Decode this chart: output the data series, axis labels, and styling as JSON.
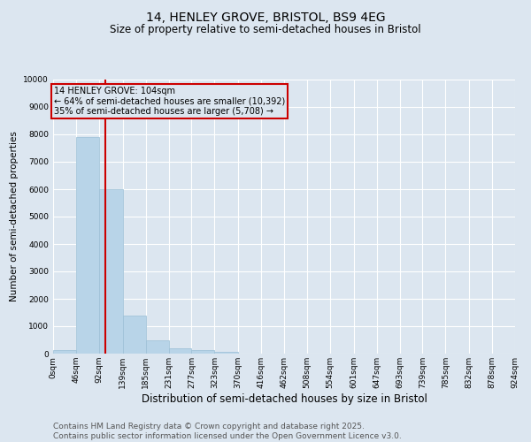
{
  "title": "14, HENLEY GROVE, BRISTOL, BS9 4EG",
  "subtitle": "Size of property relative to semi-detached houses in Bristol",
  "xlabel": "Distribution of semi-detached houses by size in Bristol",
  "ylabel": "Number of semi-detached properties",
  "property_size": 104,
  "property_label": "14 HENLEY GROVE: 104sqm",
  "annotation_line1": "← 64% of semi-detached houses are smaller (10,392)",
  "annotation_line2": "35% of semi-detached houses are larger (5,708) →",
  "bar_color": "#b8d4e8",
  "bar_edge_color": "#9bbfd6",
  "vline_color": "#cc0000",
  "annotation_box_color": "#cc0000",
  "background_color": "#dce6f0",
  "ylim": [
    0,
    10000
  ],
  "yticks": [
    0,
    1000,
    2000,
    3000,
    4000,
    5000,
    6000,
    7000,
    8000,
    9000,
    10000
  ],
  "bin_edges": [
    0,
    46,
    92,
    139,
    185,
    231,
    277,
    323,
    370,
    416,
    462,
    508,
    554,
    601,
    647,
    693,
    739,
    785,
    832,
    878,
    924
  ],
  "bin_labels": [
    "0sqm",
    "46sqm",
    "92sqm",
    "139sqm",
    "185sqm",
    "231sqm",
    "277sqm",
    "323sqm",
    "370sqm",
    "416sqm",
    "462sqm",
    "508sqm",
    "554sqm",
    "601sqm",
    "647sqm",
    "693sqm",
    "739sqm",
    "785sqm",
    "832sqm",
    "878sqm",
    "924sqm"
  ],
  "bar_heights": [
    130,
    7900,
    6000,
    1380,
    490,
    200,
    130,
    60,
    0,
    0,
    0,
    0,
    0,
    0,
    0,
    0,
    0,
    0,
    0,
    0
  ],
  "footer_line1": "Contains HM Land Registry data © Crown copyright and database right 2025.",
  "footer_line2": "Contains public sector information licensed under the Open Government Licence v3.0.",
  "title_fontsize": 10,
  "subtitle_fontsize": 8.5,
  "tick_fontsize": 6.5,
  "xlabel_fontsize": 8.5,
  "ylabel_fontsize": 7.5,
  "footer_fontsize": 6.5,
  "annotation_fontsize": 7
}
